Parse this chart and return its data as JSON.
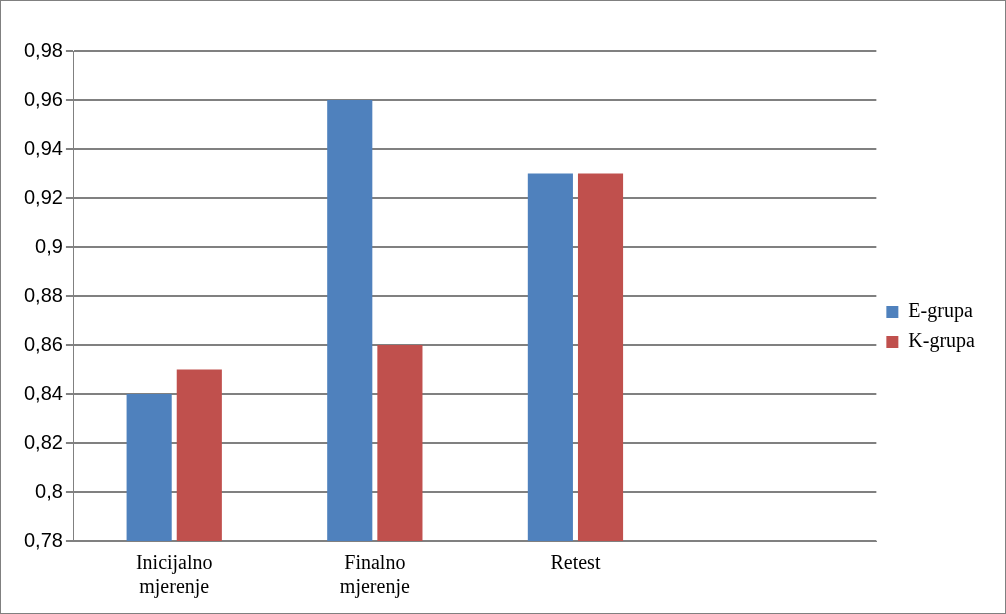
{
  "chart_data": {
    "type": "bar",
    "categories": [
      "Inicijalno mjerenje",
      "Finalno mjerenje",
      "Retest",
      null
    ],
    "series": [
      {
        "name": "E-grupa",
        "color": "#4f81bd",
        "values": [
          0.84,
          0.96,
          0.93,
          null
        ]
      },
      {
        "name": "K-grupa",
        "color": "#c0504d",
        "values": [
          0.85,
          0.86,
          0.93,
          null
        ]
      }
    ],
    "ylim": [
      0.78,
      0.98
    ],
    "yticks": [
      {
        "value": 0.78,
        "label": "0,78"
      },
      {
        "value": 0.8,
        "label": "0,8"
      },
      {
        "value": 0.82,
        "label": "0,82"
      },
      {
        "value": 0.84,
        "label": "0,84"
      },
      {
        "value": 0.86,
        "label": "0,86"
      },
      {
        "value": 0.88,
        "label": "0,88"
      },
      {
        "value": 0.9,
        "label": "0,9"
      },
      {
        "value": 0.92,
        "label": "0,92"
      },
      {
        "value": 0.94,
        "label": "0,94"
      },
      {
        "value": 0.96,
        "label": "0,96"
      },
      {
        "value": 0.98,
        "label": "0,98"
      }
    ],
    "grid": "y",
    "legend": "right"
  }
}
